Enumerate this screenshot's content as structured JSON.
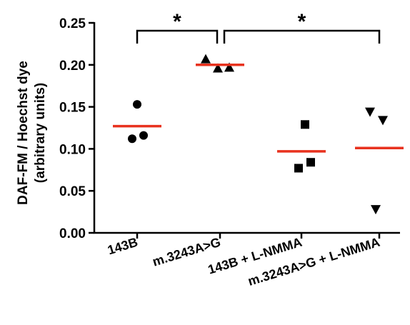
{
  "chart_data": {
    "type": "scatter",
    "title": "",
    "ylabel_line1": "DAF-FM / Hoechst dye",
    "ylabel_line2": "(arbitrary units)",
    "xlabel": "",
    "ylim": [
      0,
      0.25
    ],
    "yticks": [
      0.0,
      0.05,
      0.1,
      0.15,
      0.2,
      0.25
    ],
    "ytick_labels": [
      "0.00",
      "0.05",
      "0.10",
      "0.15",
      "0.20",
      "0.25"
    ],
    "categories": [
      "143B",
      "m.3243A>G",
      "143B + L-NMMA",
      "m.3243A>G + L-NMMA"
    ],
    "groups": [
      {
        "category": "143B",
        "marker": "circle",
        "points": [
          0.153,
          0.112,
          0.116
        ],
        "mean": 0.127
      },
      {
        "category": "m.3243A>G",
        "marker": "triangle-up",
        "points": [
          0.207,
          0.196,
          0.197
        ],
        "mean": 0.2
      },
      {
        "category": "143B + L-NMMA",
        "marker": "square",
        "points": [
          0.129,
          0.077,
          0.084
        ],
        "mean": 0.097
      },
      {
        "category": "m.3243A>G + L-NMMA",
        "marker": "triangle-down",
        "points": [
          0.144,
          0.134,
          0.028
        ],
        "mean": 0.101
      }
    ],
    "mean_line_color": "#e8321e",
    "marker_color": "#000000",
    "significance": [
      {
        "from": "143B",
        "to": "m.3243A>G",
        "label": "*"
      },
      {
        "from": "m.3243A>G",
        "to": "m.3243A>G + L-NMMA",
        "label": "*"
      }
    ]
  }
}
